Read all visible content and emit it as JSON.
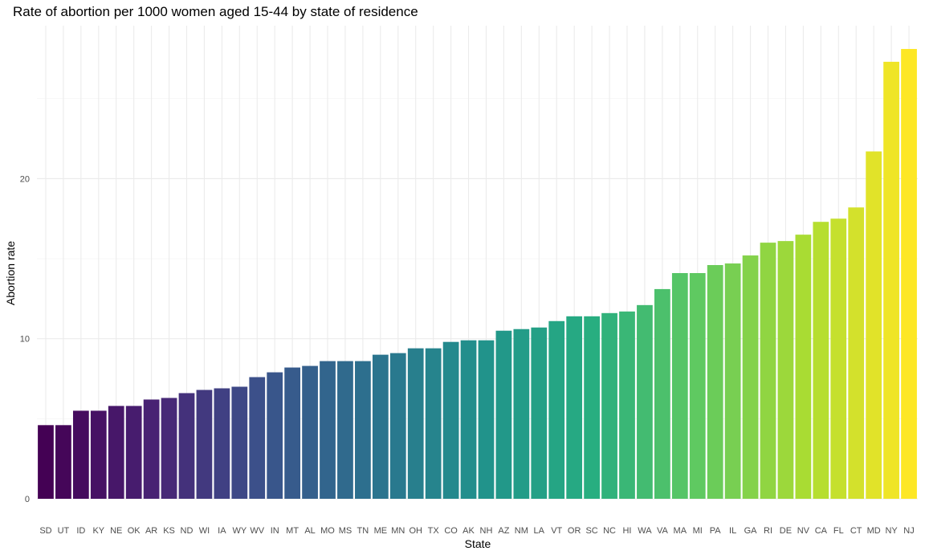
{
  "chart_data": {
    "type": "bar",
    "title": "Rate of abortion per 1000 women aged 15-44 by state of residence",
    "xlabel": "State",
    "ylabel": "Abortion rate",
    "ylim": [
      0,
      28.1
    ],
    "yticks": [
      0,
      10,
      20
    ],
    "ytick_labels": [
      "0",
      "10",
      "20"
    ],
    "grid": true,
    "legend": "none",
    "color_scale": "viridis",
    "categories": [
      "SD",
      "UT",
      "ID",
      "KY",
      "NE",
      "OK",
      "AR",
      "KS",
      "ND",
      "WI",
      "IA",
      "WY",
      "WV",
      "IN",
      "MT",
      "AL",
      "MO",
      "MS",
      "TN",
      "ME",
      "MN",
      "OH",
      "TX",
      "CO",
      "AK",
      "NH",
      "AZ",
      "NM",
      "LA",
      "VT",
      "OR",
      "SC",
      "NC",
      "HI",
      "WA",
      "VA",
      "MA",
      "MI",
      "PA",
      "IL",
      "GA",
      "RI",
      "DE",
      "NV",
      "CA",
      "FL",
      "CT",
      "MD",
      "NY",
      "NJ"
    ],
    "values": [
      4.6,
      4.6,
      5.5,
      5.5,
      5.8,
      5.8,
      6.2,
      6.3,
      6.6,
      6.8,
      6.9,
      7.0,
      7.6,
      7.9,
      8.2,
      8.3,
      8.6,
      8.6,
      8.6,
      9.0,
      9.1,
      9.4,
      9.4,
      9.8,
      9.9,
      9.9,
      10.5,
      10.6,
      10.7,
      11.1,
      11.4,
      11.4,
      11.6,
      11.7,
      12.1,
      13.1,
      14.1,
      14.1,
      14.6,
      14.7,
      15.2,
      16.0,
      16.1,
      16.5,
      17.3,
      17.5,
      18.2,
      21.7,
      27.3,
      28.1
    ]
  }
}
